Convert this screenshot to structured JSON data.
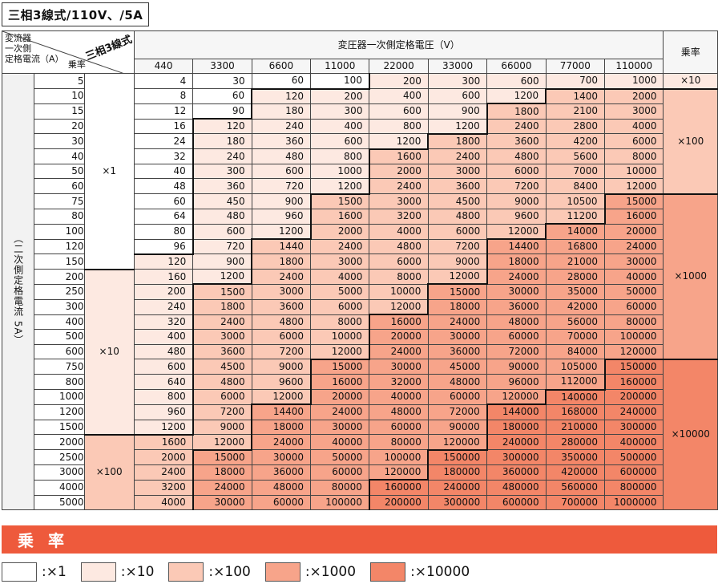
{
  "title": "三相3線式/110V、/5A",
  "header": {
    "primary_title": "変圧器一次側定格電圧（V）",
    "rate_title": "乗率",
    "corner_left": [
      "変流器",
      "一次側",
      "定格電流（A）"
    ],
    "corner_right": "三相3線式",
    "corner_bottom": "乗率",
    "secondary_label": "（二次側定格電流 5A）"
  },
  "voltages": [
    "440",
    "3300",
    "6600",
    "11000",
    "22000",
    "33000",
    "66000",
    "77000",
    "110000"
  ],
  "currents": [
    "5",
    "10",
    "15",
    "20",
    "30",
    "40",
    "50",
    "60",
    "75",
    "80",
    "100",
    "120",
    "150",
    "200",
    "250",
    "300",
    "400",
    "500",
    "600",
    "750",
    "800",
    "1000",
    "1200",
    "1500",
    "2000",
    "2500",
    "3000",
    "4000",
    "5000"
  ],
  "row_values": [
    [
      "4",
      "30",
      "60",
      "100",
      "200",
      "300",
      "600",
      "700",
      "1000"
    ],
    [
      "8",
      "60",
      "120",
      "200",
      "400",
      "600",
      "1200",
      "1400",
      "2000"
    ],
    [
      "12",
      "90",
      "180",
      "300",
      "600",
      "900",
      "1800",
      "2100",
      "3000"
    ],
    [
      "16",
      "120",
      "240",
      "400",
      "800",
      "1200",
      "2400",
      "2800",
      "4000"
    ],
    [
      "24",
      "180",
      "360",
      "600",
      "1200",
      "1800",
      "3600",
      "4200",
      "6000"
    ],
    [
      "32",
      "240",
      "480",
      "800",
      "1600",
      "2400",
      "4800",
      "5600",
      "8000"
    ],
    [
      "40",
      "300",
      "600",
      "1000",
      "2000",
      "3000",
      "6000",
      "7000",
      "10000"
    ],
    [
      "48",
      "360",
      "720",
      "1200",
      "2400",
      "3600",
      "7200",
      "8400",
      "12000"
    ],
    [
      "60",
      "450",
      "900",
      "1500",
      "3000",
      "4500",
      "9000",
      "10500",
      "15000"
    ],
    [
      "64",
      "480",
      "960",
      "1600",
      "3200",
      "4800",
      "9600",
      "11200",
      "16000"
    ],
    [
      "80",
      "600",
      "1200",
      "2000",
      "4000",
      "6000",
      "12000",
      "14000",
      "20000"
    ],
    [
      "96",
      "720",
      "1440",
      "2400",
      "4800",
      "7200",
      "14400",
      "16800",
      "24000"
    ],
    [
      "120",
      "900",
      "1800",
      "3000",
      "6000",
      "9000",
      "18000",
      "21000",
      "30000"
    ],
    [
      "160",
      "1200",
      "2400",
      "4000",
      "8000",
      "12000",
      "24000",
      "28000",
      "40000"
    ],
    [
      "200",
      "1500",
      "3000",
      "5000",
      "10000",
      "15000",
      "30000",
      "35000",
      "50000"
    ],
    [
      "240",
      "1800",
      "3600",
      "6000",
      "12000",
      "18000",
      "36000",
      "42000",
      "60000"
    ],
    [
      "320",
      "2400",
      "4800",
      "8000",
      "16000",
      "24000",
      "48000",
      "56000",
      "80000"
    ],
    [
      "400",
      "3000",
      "6000",
      "10000",
      "20000",
      "30000",
      "60000",
      "70000",
      "100000"
    ],
    [
      "480",
      "3600",
      "7200",
      "12000",
      "24000",
      "36000",
      "72000",
      "84000",
      "120000"
    ],
    [
      "600",
      "4500",
      "9000",
      "15000",
      "30000",
      "45000",
      "90000",
      "105000",
      "150000"
    ],
    [
      "640",
      "4800",
      "9600",
      "16000",
      "32000",
      "48000",
      "96000",
      "112000",
      "160000"
    ],
    [
      "800",
      "6000",
      "12000",
      "20000",
      "40000",
      "60000",
      "120000",
      "140000",
      "200000"
    ],
    [
      "960",
      "7200",
      "14400",
      "24000",
      "48000",
      "72000",
      "144000",
      "168000",
      "240000"
    ],
    [
      "1200",
      "9000",
      "18000",
      "30000",
      "60000",
      "90000",
      "180000",
      "210000",
      "300000"
    ],
    [
      "1600",
      "12000",
      "24000",
      "40000",
      "80000",
      "120000",
      "240000",
      "280000",
      "400000"
    ],
    [
      "2000",
      "15000",
      "30000",
      "50000",
      "100000",
      "150000",
      "300000",
      "350000",
      "500000"
    ],
    [
      "2400",
      "18000",
      "36000",
      "60000",
      "120000",
      "180000",
      "360000",
      "420000",
      "600000"
    ],
    [
      "3200",
      "24000",
      "48000",
      "80000",
      "160000",
      "240000",
      "480000",
      "560000",
      "800000"
    ],
    [
      "4000",
      "30000",
      "60000",
      "100000",
      "200000",
      "300000",
      "600000",
      "700000",
      "1000000"
    ]
  ],
  "left_multipliers": [
    {
      "label": "×1",
      "rows": 13,
      "level": 0
    },
    {
      "label": "×10",
      "rows": 11,
      "level": 1
    },
    {
      "label": "×100",
      "rows": 5,
      "level": 2
    }
  ],
  "rate_groups": [
    {
      "label": "×10",
      "rows": 1,
      "level": 1
    },
    {
      "label": "×100",
      "rows": 7,
      "level": 2
    },
    {
      "label": "×1000",
      "rows": 11,
      "level": 3
    },
    {
      "label": "×10000",
      "rows": 10,
      "level": 4
    }
  ],
  "colors": {
    "x1": "#ffffff",
    "x10": "#fde9e1",
    "x100": "#fbc9b6",
    "x1000": "#f7a48a",
    "x10000": "#f38668",
    "banner": "#ee5a3c"
  },
  "banner_label": "乗率",
  "legend": [
    {
      "label": ":×1",
      "level": 0
    },
    {
      "label": ":×10",
      "level": 1
    },
    {
      "label": ":×100",
      "level": 2
    },
    {
      "label": ":×1000",
      "level": 3
    },
    {
      "label": ":×10000",
      "level": 4
    }
  ]
}
